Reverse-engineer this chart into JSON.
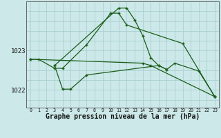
{
  "background_color": "#cce8e8",
  "grid_color": "#aad0d0",
  "line_color": "#1a5c1a",
  "xlabel": "Graphe pression niveau de la mer (hPa)",
  "xlabel_fontsize": 7,
  "yticks": [
    1022,
    1023
  ],
  "xlim": [
    -0.5,
    23.5
  ],
  "ylim": [
    1021.55,
    1024.25
  ],
  "series_full": [
    {
      "x": [
        0,
        1,
        3,
        4,
        7,
        10,
        11,
        12,
        19,
        23
      ],
      "y": [
        1022.78,
        1022.78,
        1022.55,
        1022.55,
        1023.15,
        1023.95,
        1023.95,
        1023.65,
        1023.18,
        1021.83
      ]
    },
    {
      "x": [
        3,
        11,
        12,
        13,
        14,
        15,
        16,
        17,
        18,
        21,
        23
      ],
      "y": [
        1022.62,
        1024.08,
        1024.08,
        1023.78,
        1023.38,
        1022.82,
        1022.62,
        1022.52,
        1022.68,
        1022.48,
        1021.83
      ]
    },
    {
      "x": [
        3,
        4,
        5,
        7,
        16,
        17
      ],
      "y": [
        1022.62,
        1022.02,
        1022.02,
        1022.38,
        1022.62,
        1022.52
      ]
    },
    {
      "x": [
        0,
        14,
        15,
        23
      ],
      "y": [
        1022.78,
        1022.68,
        1022.62,
        1021.83
      ]
    }
  ]
}
